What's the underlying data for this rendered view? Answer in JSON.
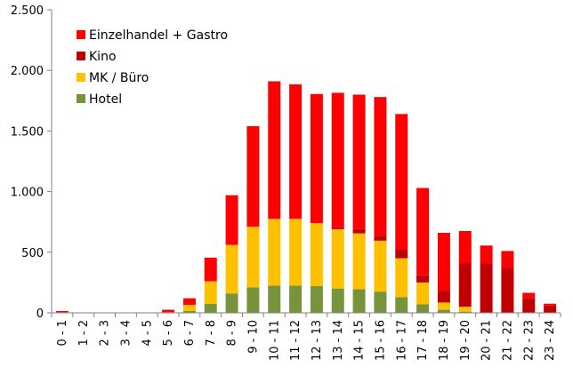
{
  "chart_data": {
    "type": "bar",
    "stacked": true,
    "categories": [
      "0 - 1",
      "1 - 2",
      "2 - 3",
      "3 - 4",
      "4 - 5",
      "5 - 6",
      "6 - 7",
      "7 - 8",
      "8 - 9",
      "9 - 10",
      "10 - 11",
      "11 - 12",
      "12 - 13",
      "13 - 14",
      "14 - 15",
      "15 - 16",
      "16 - 17",
      "17 - 18",
      "18 - 19",
      "19 - 20",
      "20 - 21",
      "21 - 22",
      "22 - 23",
      "23 - 24"
    ],
    "series": [
      {
        "name": "Hotel",
        "color": "#77933c",
        "values": [
          0,
          0,
          0,
          0,
          0,
          0,
          15,
          75,
          160,
          210,
          225,
          225,
          220,
          200,
          195,
          175,
          130,
          70,
          25,
          10,
          0,
          0,
          0,
          0
        ]
      },
      {
        "name": "MK / Büro",
        "color": "#ffc000",
        "values": [
          0,
          0,
          0,
          0,
          0,
          0,
          50,
          185,
          400,
          500,
          550,
          550,
          520,
          490,
          460,
          420,
          320,
          180,
          60,
          40,
          0,
          0,
          0,
          0
        ]
      },
      {
        "name": "Kino",
        "color": "#c00000",
        "values": [
          5,
          0,
          0,
          0,
          0,
          5,
          5,
          0,
          0,
          0,
          0,
          0,
          0,
          15,
          35,
          40,
          75,
          60,
          95,
          360,
          410,
          370,
          120,
          60
        ]
      },
      {
        "name": "Einzelhandel + Gastro",
        "color": "#ff0000",
        "values": [
          10,
          0,
          0,
          0,
          0,
          20,
          50,
          195,
          410,
          830,
          1135,
          1110,
          1065,
          1110,
          1110,
          1145,
          1115,
          720,
          480,
          265,
          145,
          140,
          45,
          15
        ]
      }
    ],
    "legend": {
      "placement": "top-left",
      "order": [
        "Einzelhandel + Gastro",
        "Kino",
        "MK / Büro",
        "Hotel"
      ]
    },
    "ylim": [
      0,
      2500
    ],
    "yticks": [
      0,
      500,
      1000,
      1500,
      2000,
      2500
    ],
    "ytick_labels": [
      "0",
      "500",
      "1.000",
      "1.500",
      "2.000",
      "2.500"
    ],
    "grid": false,
    "title": "",
    "xlabel": "",
    "ylabel": ""
  }
}
